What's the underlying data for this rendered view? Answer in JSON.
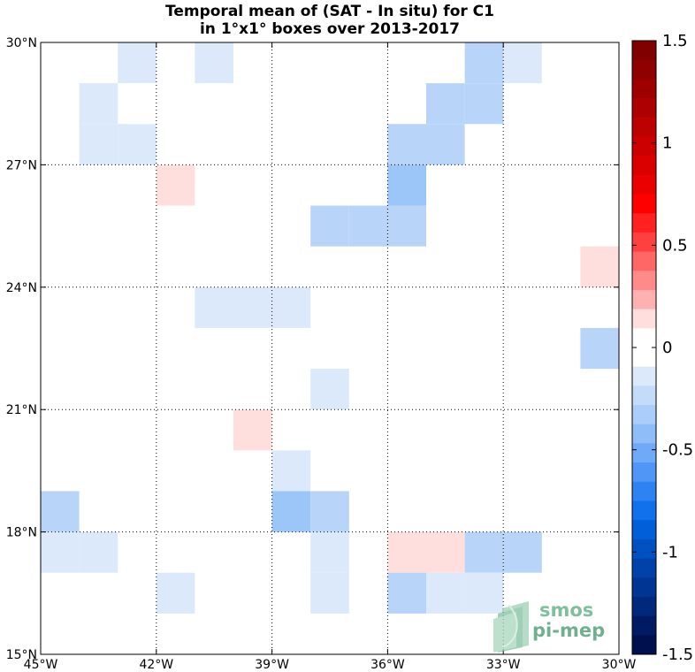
{
  "chart_data": {
    "type": "heatmap",
    "title": [
      "Temporal mean of (SAT - In situ) for C1",
      "in 1°x1° boxes over 2013-2017"
    ],
    "x_range": [
      -45,
      -30
    ],
    "y_range": [
      15,
      30
    ],
    "x_ticks": [
      {
        "value": -45,
        "label": "45°W"
      },
      {
        "value": -42,
        "label": "42°W"
      },
      {
        "value": -39,
        "label": "39°W"
      },
      {
        "value": -36,
        "label": "36°W"
      },
      {
        "value": -33,
        "label": "33°W"
      },
      {
        "value": -30,
        "label": "30°W"
      }
    ],
    "y_ticks": [
      {
        "value": 15,
        "label": "15°N"
      },
      {
        "value": 18,
        "label": "18°N"
      },
      {
        "value": 21,
        "label": "21°N"
      },
      {
        "value": 24,
        "label": "24°N"
      },
      {
        "value": 27,
        "label": "27°N"
      },
      {
        "value": 30,
        "label": "30°N"
      }
    ],
    "grid": true,
    "cell_size_deg": 1,
    "cells": [
      {
        "lon": -43,
        "lat": 29,
        "value": -0.15
      },
      {
        "lon": -41,
        "lat": 29,
        "value": -0.15
      },
      {
        "lon": -34,
        "lat": 29,
        "value": -0.3
      },
      {
        "lon": -33,
        "lat": 29,
        "value": -0.1
      },
      {
        "lon": -44,
        "lat": 28,
        "value": -0.1
      },
      {
        "lon": -35,
        "lat": 28,
        "value": -0.3
      },
      {
        "lon": -34,
        "lat": 28,
        "value": -0.3
      },
      {
        "lon": -44,
        "lat": 27,
        "value": -0.1
      },
      {
        "lon": -43,
        "lat": 27,
        "value": -0.1
      },
      {
        "lon": -36,
        "lat": 27,
        "value": -0.3
      },
      {
        "lon": -35,
        "lat": 27,
        "value": -0.3
      },
      {
        "lon": -42,
        "lat": 26,
        "value": 0.15
      },
      {
        "lon": -36,
        "lat": 26,
        "value": -0.45
      },
      {
        "lon": -38,
        "lat": 25,
        "value": -0.3
      },
      {
        "lon": -37,
        "lat": 25,
        "value": -0.3
      },
      {
        "lon": -36,
        "lat": 25,
        "value": -0.3
      },
      {
        "lon": -31,
        "lat": 24,
        "value": 0.15
      },
      {
        "lon": -41,
        "lat": 23,
        "value": -0.15
      },
      {
        "lon": -40,
        "lat": 23,
        "value": -0.15
      },
      {
        "lon": -39,
        "lat": 23,
        "value": -0.15
      },
      {
        "lon": -31,
        "lat": 22,
        "value": -0.3
      },
      {
        "lon": -38,
        "lat": 21,
        "value": -0.15
      },
      {
        "lon": -40,
        "lat": 20,
        "value": 0.15
      },
      {
        "lon": -39,
        "lat": 19,
        "value": -0.15
      },
      {
        "lon": -45,
        "lat": 18,
        "value": -0.3
      },
      {
        "lon": -39,
        "lat": 18,
        "value": -0.45
      },
      {
        "lon": -38,
        "lat": 18,
        "value": -0.3
      },
      {
        "lon": -45,
        "lat": 17,
        "value": -0.15
      },
      {
        "lon": -44,
        "lat": 17,
        "value": -0.15
      },
      {
        "lon": -38,
        "lat": 17,
        "value": -0.15
      },
      {
        "lon": -36,
        "lat": 17,
        "value": 0.15
      },
      {
        "lon": -35,
        "lat": 17,
        "value": 0.15
      },
      {
        "lon": -34,
        "lat": 17,
        "value": -0.3
      },
      {
        "lon": -33,
        "lat": 17,
        "value": -0.3
      },
      {
        "lon": -42,
        "lat": 16,
        "value": -0.15
      },
      {
        "lon": -38,
        "lat": 16,
        "value": -0.15
      },
      {
        "lon": -36,
        "lat": 16,
        "value": -0.3
      },
      {
        "lon": -35,
        "lat": 16,
        "value": -0.15
      },
      {
        "lon": -34,
        "lat": 16,
        "value": -0.15
      }
    ],
    "colorbar": {
      "range": [
        -1.5,
        1.5
      ],
      "ticks": [
        {
          "value": 1.5,
          "label": "1.5"
        },
        {
          "value": 1,
          "label": "1"
        },
        {
          "value": 0.5,
          "label": "0.5"
        },
        {
          "value": 0,
          "label": "0"
        },
        {
          "value": -0.5,
          "label": "-0.5"
        },
        {
          "value": -1,
          "label": "-1"
        },
        {
          "value": -1.5,
          "label": "-1.5"
        }
      ],
      "colors": [
        "#800000",
        "#8f0000",
        "#9e0000",
        "#ad0000",
        "#bd0000",
        "#cc0000",
        "#db0000",
        "#eb0000",
        "#ff0000",
        "#ff2020",
        "#ff4040",
        "#ff6666",
        "#ff8a8a",
        "#ffb0b0",
        "#ffdede",
        "#ffffff",
        "#ffffff",
        "#dce9fb",
        "#c4dcfa",
        "#aacdf9",
        "#8ebdf8",
        "#6eaaf7",
        "#4f96f6",
        "#2f82f2",
        "#1170ec",
        "#005fd9",
        "#0050c2",
        "#0042aa",
        "#003593",
        "#00287b",
        "#001b63",
        "#000f4d"
      ]
    }
  },
  "colors": {
    "pos_0.15": "#ffdede",
    "neg_0.15": "#dce9fb",
    "neg_0.3": "#b9d4f9",
    "neg_0.45": "#9cc6f8"
  },
  "logo": {
    "line1": "smos",
    "line2": "pi-mep"
  }
}
